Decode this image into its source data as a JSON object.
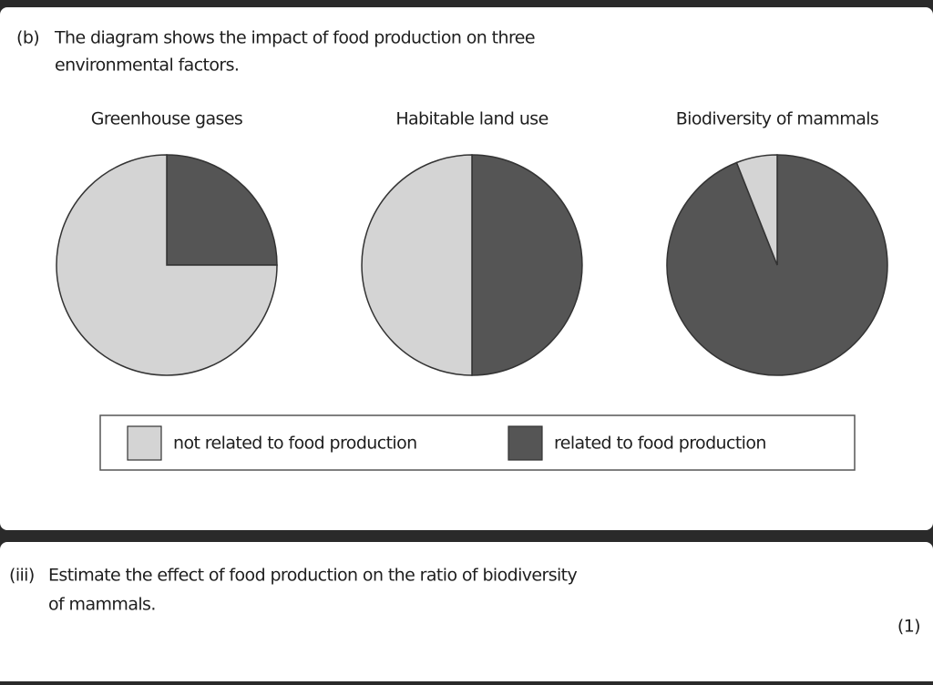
{
  "question_b": {
    "label": "(b)",
    "lines": [
      "The diagram shows the impact of food production on three",
      "environmental factors."
    ]
  },
  "chart_data": [
    {
      "type": "pie",
      "title": "Greenhouse gases",
      "values": [
        75,
        25
      ]
    },
    {
      "type": "pie",
      "title": "Habitable land use",
      "values": [
        50,
        50
      ]
    },
    {
      "type": "pie",
      "title": "Biodiversity of mammals",
      "values": [
        6,
        94
      ]
    }
  ],
  "legend": [
    {
      "name": "not related to food production",
      "color": "#d4d4d4"
    },
    {
      "name": "related to food production",
      "color": "#555555"
    }
  ],
  "question_iii": {
    "label": "(iii)",
    "lines": [
      "Estimate the effect of food production on the ratio of biodiversity",
      "of mammals."
    ],
    "marks": "(1)"
  }
}
